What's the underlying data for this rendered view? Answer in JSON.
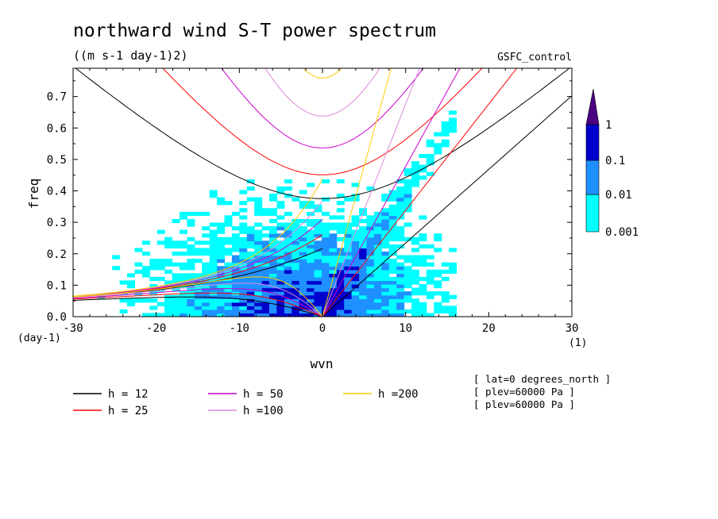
{
  "chart_data": {
    "type": "heatmap",
    "title": "northward wind S-T power spectrum",
    "subtitle": "((m s-1 day-1)2)",
    "run_label": "GSFC_control",
    "xlabel": "wvn",
    "ylabel": "freq",
    "x_unit": "(1)",
    "y_unit": "(day-1)",
    "xlim": [
      -30,
      30
    ],
    "ylim": [
      0,
      0.79
    ],
    "x_ticks": [
      -30,
      -20,
      -10,
      0,
      10,
      20,
      30
    ],
    "x_tick_labels": [
      "-30",
      "-20",
      "-10",
      "0",
      "10",
      "20",
      "30"
    ],
    "y_ticks": [
      0,
      0.1,
      0.2,
      0.3,
      0.4,
      0.5,
      0.6,
      0.7
    ],
    "y_tick_labels": [
      "0.0",
      "0.1",
      "0.2",
      "0.3",
      "0.4",
      "0.5",
      "0.6",
      "0.7"
    ],
    "colorbar": {
      "levels": [
        "0.001",
        "0.01",
        "0.1",
        "1"
      ],
      "colors": [
        "#00ffff",
        "#1e90ff",
        "#0000cd",
        "#4b0082"
      ]
    },
    "dispersion_curves": [
      {
        "label": "h = 12",
        "h": 12,
        "color": "#000000"
      },
      {
        "label": "h = 25",
        "h": 25,
        "color": "#ff0000"
      },
      {
        "label": "h = 50",
        "h": 50,
        "color": "#cc00cc"
      },
      {
        "label": "h =100",
        "h": 100,
        "color": "#dd88dd"
      },
      {
        "label": "h =200",
        "h": 200,
        "color": "#ffcc00"
      }
    ],
    "annotations": [
      "[ lat=0 degrees_north ]",
      "[ plev=60000 Pa ]",
      "[ plev=60000 Pa ]"
    ]
  }
}
